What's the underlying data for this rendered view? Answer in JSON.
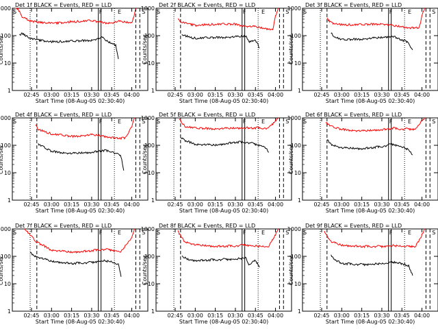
{
  "chart_data": [
    {
      "type": "line",
      "title": "Det 1f BLACK = Events, RED = LLD",
      "ylabel": "Counts/sec",
      "xlabel": "Start Time (08-Aug-05 02:30:40)",
      "ylog": true,
      "ylim": [
        1,
        1000
      ],
      "xlim": [
        "02:30:40",
        "04:12:00"
      ],
      "xticks": [
        "02:45",
        "03:00",
        "03:15",
        "03:30",
        "03:45",
        "04:00"
      ],
      "yticks": [
        "1",
        "10",
        "100",
        "1000"
      ],
      "markers": [
        "S",
        "F",
        "E",
        "S"
      ],
      "series": [
        {
          "color": "#ff0000",
          "x": [
            "02:33",
            "02:35",
            "02:38",
            "02:45",
            "03:00",
            "03:15",
            "03:30",
            "03:38",
            "03:45",
            "03:50",
            "03:55",
            "04:00",
            "04:02",
            "04:03"
          ],
          "values": [
            1000,
            900,
            480,
            330,
            280,
            320,
            350,
            300,
            290,
            330,
            310,
            290,
            600,
            1000
          ]
        },
        {
          "color": "#000000",
          "x": [
            "02:36",
            "02:38",
            "02:45",
            "03:00",
            "03:15",
            "03:30",
            "03:38",
            "03:42",
            "03:48",
            "03:50"
          ],
          "values": [
            110,
            120,
            75,
            60,
            62,
            68,
            85,
            60,
            45,
            14
          ]
        }
      ]
    },
    {
      "type": "line",
      "title": "Det 2f BLACK = Events, RED = LLD",
      "ylabel": "Counts/sec",
      "xlabel": "Start Time (08-Aug-05 02:30:40)",
      "ylog": true,
      "ylim": [
        1,
        1000
      ],
      "xlim": [
        "02:30:40",
        "04:12:00"
      ],
      "xticks": [
        "02:45",
        "03:00",
        "03:15",
        "03:30",
        "03:45",
        "04:00"
      ],
      "yticks": [
        "1",
        "10",
        "100",
        "1000"
      ],
      "markers": [
        "S",
        "F",
        "E",
        "S"
      ],
      "series": [
        {
          "color": "#ff0000",
          "x": [
            "02:47",
            "02:50",
            "03:00",
            "03:15",
            "03:30",
            "03:38",
            "03:45",
            "03:52",
            "03:58",
            "04:00",
            "04:02"
          ],
          "values": [
            400,
            300,
            240,
            260,
            260,
            220,
            210,
            180,
            170,
            500,
            1000
          ]
        },
        {
          "color": "#000000",
          "x": [
            "02:50",
            "02:55",
            "03:00",
            "03:15",
            "03:30",
            "03:38",
            "03:40",
            "03:45",
            "03:48"
          ],
          "values": [
            110,
            90,
            80,
            85,
            90,
            95,
            60,
            70,
            35
          ]
        }
      ]
    },
    {
      "type": "line",
      "title": "Det 3f BLACK = Events, RED = LLD",
      "ylabel": "Counts/sec",
      "xlabel": "Start Time (08-Aug-05 02:30:40)",
      "ylog": true,
      "ylim": [
        1,
        1000
      ],
      "xlim": [
        "02:30:40",
        "04:12:00"
      ],
      "xticks": [
        "02:45",
        "03:00",
        "03:15",
        "03:30",
        "03:45",
        "04:00"
      ],
      "yticks": [
        "1",
        "10",
        "100",
        "1000"
      ],
      "markers": [
        "S",
        "F",
        "E",
        "S"
      ],
      "series": [
        {
          "color": "#ff0000",
          "x": [
            "02:49",
            "02:52",
            "03:00",
            "03:15",
            "03:30",
            "03:38",
            "03:45",
            "03:52",
            "03:58",
            "04:00",
            "04:02"
          ],
          "values": [
            420,
            300,
            250,
            250,
            270,
            230,
            210,
            190,
            200,
            500,
            1000
          ]
        },
        {
          "color": "#000000",
          "x": [
            "02:52",
            "02:55",
            "03:00",
            "03:15",
            "03:30",
            "03:38",
            "03:45",
            "03:50",
            "03:53"
          ],
          "values": [
            120,
            90,
            70,
            75,
            85,
            95,
            70,
            55,
            30
          ]
        }
      ]
    },
    {
      "type": "line",
      "title": "Det 4f BLACK = Events, RED = LLD",
      "ylabel": "Counts/sec",
      "xlabel": "Start Time (08-Aug-05 02:30:40)",
      "ylog": true,
      "ylim": [
        1,
        1000
      ],
      "xlim": [
        "02:30:40",
        "04:12:00"
      ],
      "xticks": [
        "02:45",
        "03:00",
        "03:15",
        "03:30",
        "03:45",
        "04:00"
      ],
      "yticks": [
        "1",
        "10",
        "100",
        "1000"
      ],
      "markers": [
        "S",
        "F",
        "E",
        "S"
      ],
      "series": [
        {
          "color": "#ff0000",
          "x": [
            "02:48",
            "02:50",
            "03:00",
            "03:15",
            "03:30",
            "03:38",
            "03:45",
            "03:55",
            "04:00",
            "04:02"
          ],
          "values": [
            600,
            380,
            260,
            210,
            240,
            220,
            190,
            180,
            500,
            1000
          ]
        },
        {
          "color": "#000000",
          "x": [
            "02:50",
            "02:55",
            "03:00",
            "03:15",
            "03:30",
            "03:38",
            "03:45",
            "03:52",
            "03:54"
          ],
          "values": [
            110,
            80,
            60,
            50,
            55,
            65,
            60,
            40,
            12
          ]
        }
      ]
    },
    {
      "type": "line",
      "title": "Det 5f BLACK = Events, RED = LLD",
      "ylabel": "Counts/sec",
      "xlabel": "Start Time (08-Aug-05 02:30:40)",
      "ylog": true,
      "ylim": [
        1,
        1000
      ],
      "xlim": [
        "02:30:40",
        "04:12:00"
      ],
      "xticks": [
        "02:45",
        "03:00",
        "03:15",
        "03:30",
        "03:45",
        "04:00"
      ],
      "yticks": [
        "1",
        "10",
        "100",
        "1000"
      ],
      "markers": [
        "S",
        "F",
        "E",
        "S"
      ],
      "series": [
        {
          "color": "#ff0000",
          "x": [
            "02:48",
            "02:52",
            "03:00",
            "03:15",
            "03:30",
            "03:38",
            "03:45",
            "03:55",
            "04:00",
            "04:02"
          ],
          "values": [
            950,
            500,
            420,
            400,
            420,
            430,
            430,
            420,
            800,
            1000
          ]
        },
        {
          "color": "#000000",
          "x": [
            "02:49",
            "02:52",
            "03:00",
            "03:15",
            "03:30",
            "03:38",
            "03:45",
            "03:52",
            "03:55"
          ],
          "values": [
            200,
            150,
            110,
            100,
            130,
            130,
            110,
            90,
            55
          ]
        }
      ]
    },
    {
      "type": "line",
      "title": "Det 6f BLACK = Events, RED = LLD",
      "ylabel": "Counts/sec",
      "xlabel": "Start Time (08-Aug-05 02:30:40)",
      "ylog": true,
      "ylim": [
        1,
        1000
      ],
      "xlim": [
        "02:30:40",
        "04:12:00"
      ],
      "xticks": [
        "02:45",
        "03:00",
        "03:15",
        "03:30",
        "03:45",
        "04:00"
      ],
      "yticks": [
        "1",
        "10",
        "100",
        "1000"
      ],
      "markers": [
        "S",
        "F",
        "E",
        "S"
      ],
      "series": [
        {
          "color": "#ff0000",
          "x": [
            "02:48",
            "02:52",
            "03:00",
            "03:15",
            "03:30",
            "03:38",
            "03:45",
            "03:55",
            "04:00",
            "04:02"
          ],
          "values": [
            700,
            480,
            380,
            330,
            370,
            420,
            390,
            390,
            800,
            1000
          ]
        },
        {
          "color": "#000000",
          "x": [
            "02:49",
            "02:52",
            "03:00",
            "03:15",
            "03:30",
            "03:38",
            "03:45",
            "03:50",
            "03:53"
          ],
          "values": [
            160,
            110,
            80,
            75,
            90,
            110,
            90,
            70,
            45
          ]
        }
      ]
    },
    {
      "type": "line",
      "title": "Det 7f BLACK = Events, RED = LLD",
      "ylabel": "Counts/sec",
      "xlabel": "Start Time (08-Aug-05 02:30:40)",
      "ylog": true,
      "ylim": [
        1,
        1000
      ],
      "xlim": [
        "02:30:40",
        "04:12:00"
      ],
      "xticks": [
        "02:45",
        "03:00",
        "03:15",
        "03:30",
        "03:45",
        "04:00"
      ],
      "yticks": [
        "1",
        "10",
        "100",
        "1000"
      ],
      "markers": [
        "S",
        "F",
        "E",
        "S"
      ],
      "series": [
        {
          "color": "#ff0000",
          "x": [
            "02:40",
            "02:44",
            "02:48",
            "03:00",
            "03:15",
            "03:30",
            "03:38",
            "03:45",
            "03:52",
            "04:00",
            "04:02"
          ],
          "values": [
            1000,
            600,
            350,
            170,
            140,
            160,
            180,
            170,
            150,
            500,
            1000
          ]
        },
        {
          "color": "#000000",
          "x": [
            "02:44",
            "02:48",
            "03:00",
            "03:15",
            "03:30",
            "03:38",
            "03:45",
            "03:50",
            "03:52"
          ],
          "values": [
            140,
            100,
            65,
            55,
            60,
            70,
            65,
            50,
            18
          ]
        }
      ]
    },
    {
      "type": "line",
      "title": "Det 8f BLACK = Events, RED = LLD",
      "ylabel": "Counts/sec",
      "xlabel": "Start Time (08-Aug-05 02:30:40)",
      "ylog": true,
      "ylim": [
        1,
        1000
      ],
      "xlim": [
        "02:30:40",
        "04:12:00"
      ],
      "xticks": [
        "02:45",
        "03:00",
        "03:15",
        "03:30",
        "03:45",
        "04:00"
      ],
      "yticks": [
        "1",
        "10",
        "100",
        "1000"
      ],
      "markers": [
        "S",
        "F",
        "E",
        "S"
      ],
      "series": [
        {
          "color": "#ff0000",
          "x": [
            "02:47",
            "02:52",
            "03:00",
            "03:15",
            "03:30",
            "03:38",
            "03:45",
            "03:55",
            "04:00",
            "04:02"
          ],
          "values": [
            800,
            350,
            260,
            230,
            240,
            260,
            240,
            230,
            600,
            1000
          ]
        },
        {
          "color": "#000000",
          "x": [
            "02:50",
            "02:55",
            "03:00",
            "03:15",
            "03:30",
            "03:38",
            "03:40",
            "03:45",
            "03:48"
          ],
          "values": [
            100,
            75,
            70,
            75,
            80,
            90,
            50,
            70,
            40
          ]
        }
      ]
    },
    {
      "type": "line",
      "title": "Det 9f BLACK = Events, RED = LLD",
      "ylabel": "Counts/sec",
      "xlabel": "Start Time (08-Aug-05 02:30:40)",
      "ylog": true,
      "ylim": [
        1,
        1000
      ],
      "xlim": [
        "02:30:40",
        "04:12:00"
      ],
      "xticks": [
        "02:45",
        "03:00",
        "03:15",
        "03:30",
        "03:45",
        "04:00"
      ],
      "yticks": [
        "1",
        "10",
        "100",
        "1000"
      ],
      "markers": [
        "S",
        "F",
        "E",
        "S"
      ],
      "series": [
        {
          "color": "#ff0000",
          "x": [
            "02:47",
            "02:52",
            "03:00",
            "03:15",
            "03:30",
            "03:38",
            "03:45",
            "03:55",
            "04:00",
            "04:02"
          ],
          "values": [
            800,
            340,
            250,
            230,
            230,
            250,
            240,
            220,
            600,
            1000
          ]
        },
        {
          "color": "#000000",
          "x": [
            "02:52",
            "02:55",
            "03:00",
            "03:15",
            "03:30",
            "03:38",
            "03:45",
            "03:50",
            "03:53"
          ],
          "values": [
            110,
            75,
            55,
            50,
            55,
            60,
            55,
            45,
            20
          ]
        }
      ]
    }
  ]
}
